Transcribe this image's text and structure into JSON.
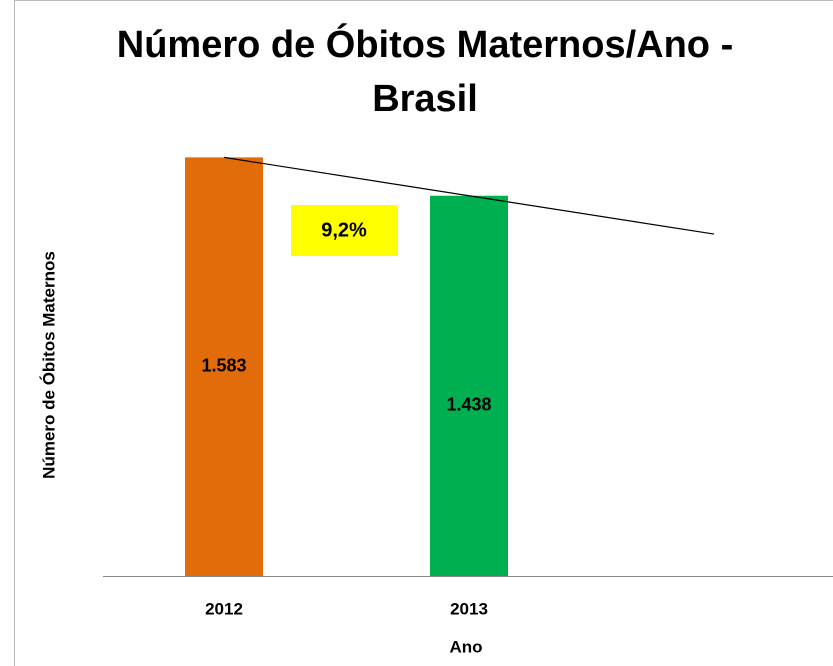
{
  "chart_data": {
    "type": "bar",
    "title": "Número de Óbitos Maternos/Ano - Brasil",
    "x_label": "Ano",
    "y_label": "Número de Óbitos Maternos",
    "categories": [
      "2012",
      "2013"
    ],
    "values": [
      1583,
      1438
    ],
    "value_labels": [
      "1.583",
      "1.438"
    ],
    "colors": [
      "#e36c0a",
      "#00b050"
    ],
    "ylim": [
      0,
      1800
    ],
    "annotation": "9,2%",
    "trendline": true
  }
}
